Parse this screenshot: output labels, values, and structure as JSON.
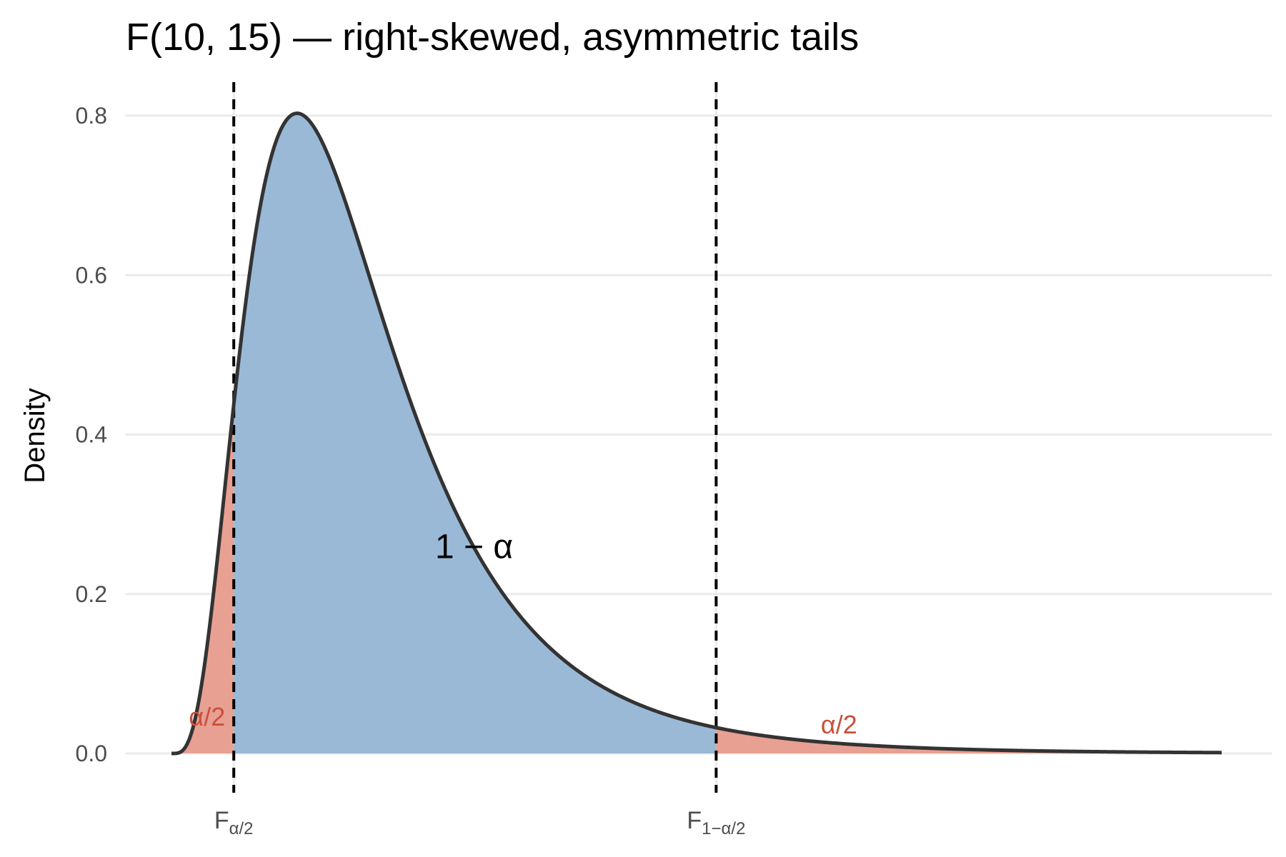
{
  "chart_data": {
    "type": "area",
    "title": "F(10, 15) — right-skewed, asymmetric tails",
    "xlabel": "",
    "ylabel": "Density",
    "df1": 10,
    "df2": 15,
    "xlim": [
      0,
      5.9
    ],
    "ylim": [
      0,
      0.8
    ],
    "yticks": [
      0.0,
      0.2,
      0.4,
      0.6,
      0.8
    ],
    "ytick_labels": [
      "0.0",
      "0.2",
      "0.4",
      "0.6",
      "0.8"
    ],
    "critical_values": [
      {
        "name": "lower",
        "x": 0.35,
        "label_main": "F",
        "label_sub": "α/2"
      },
      {
        "name": "upper",
        "x": 3.06,
        "label_main": "F",
        "label_sub": "1−α/2"
      }
    ],
    "regions": [
      {
        "name": "lower-tail",
        "from": 0,
        "to": 0.35,
        "color": "#e8a092"
      },
      {
        "name": "central",
        "from": 0.35,
        "to": 3.06,
        "color": "#9ab9d7"
      },
      {
        "name": "upper-tail",
        "from": 3.06,
        "to": 5.9,
        "color": "#e8a092"
      }
    ],
    "annotations": [
      {
        "name": "central",
        "text": "1 − α",
        "x": 1.7,
        "y": 0.245,
        "color": "#000000"
      },
      {
        "name": "lower-tail",
        "text": "α/2",
        "x": 0.2,
        "y": 0.035,
        "color": "#c9503c"
      },
      {
        "name": "upper-tail",
        "text": "α/2",
        "x": 3.75,
        "y": 0.025,
        "color": "#c9503c"
      }
    ],
    "grid": true,
    "curve_color": "#333333"
  }
}
